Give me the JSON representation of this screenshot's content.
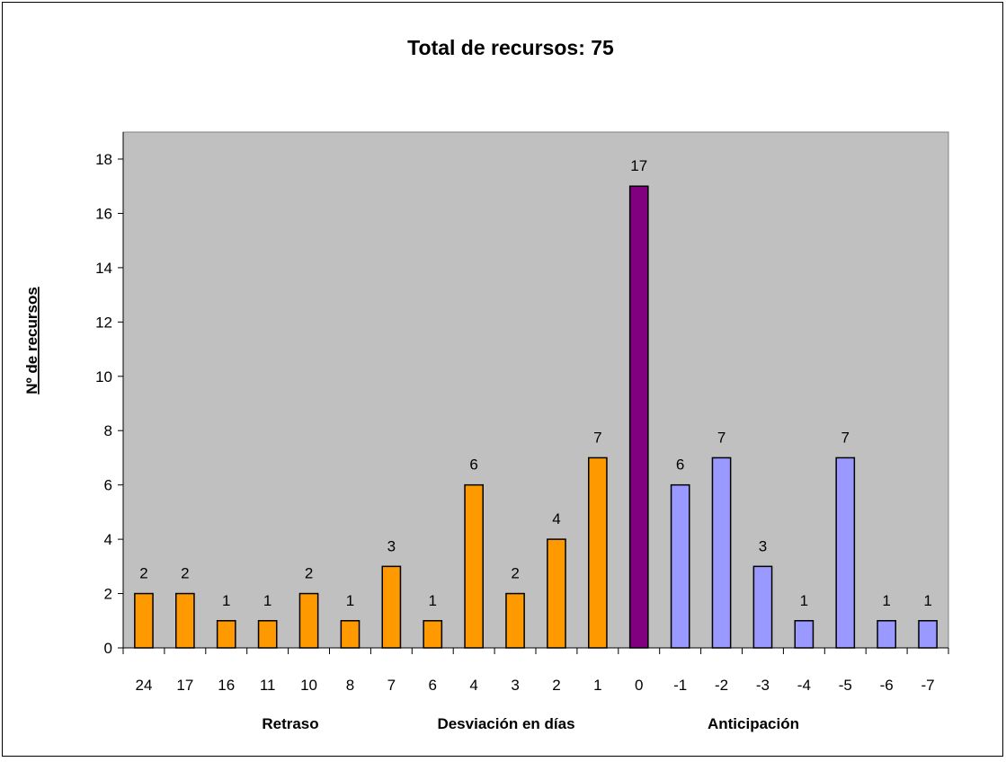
{
  "chart_data": {
    "type": "bar",
    "title": "Total de recursos: 75",
    "ylabel": "Nº de recursos",
    "xlabel": "Desviación en días",
    "xlabel_left": "Retraso",
    "xlabel_right": "Anticipación",
    "categories": [
      "24",
      "17",
      "16",
      "11",
      "10",
      "8",
      "7",
      "6",
      "4",
      "3",
      "2",
      "1",
      "0",
      "-1",
      "-2",
      "-3",
      "-4",
      "-5",
      "-6",
      "-7"
    ],
    "values": [
      2,
      2,
      1,
      1,
      2,
      1,
      3,
      1,
      6,
      2,
      4,
      7,
      17,
      6,
      7,
      3,
      1,
      7,
      1,
      1
    ],
    "bar_groups": [
      "retraso",
      "retraso",
      "retraso",
      "retraso",
      "retraso",
      "retraso",
      "retraso",
      "retraso",
      "retraso",
      "retraso",
      "retraso",
      "retraso",
      "cero",
      "anticipacion",
      "anticipacion",
      "anticipacion",
      "anticipacion",
      "anticipacion",
      "anticipacion",
      "anticipacion"
    ],
    "colors": {
      "retraso": "#ff9900",
      "cero": "#800080",
      "anticipacion": "#9999ff",
      "plot_background": "#c0c0c0"
    },
    "ylim": [
      0,
      18
    ],
    "yticks": [
      0,
      2,
      4,
      6,
      8,
      10,
      12,
      14,
      16,
      18
    ],
    "grid": false,
    "legend": "none",
    "data_labels": true
  }
}
